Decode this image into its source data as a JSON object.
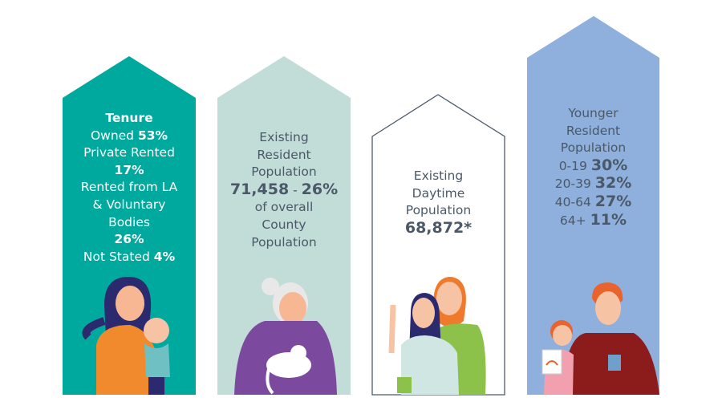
{
  "colors": {
    "house1": "#00a99d",
    "house2": "#c2dcd8",
    "house3_outline": "#4a5a6a",
    "house4": "#8fb0dc",
    "text": "#4a5868"
  },
  "tenure": {
    "title": "Tenure",
    "owned_label": "Owned",
    "owned_value": "53%",
    "private_label": "Private Rented",
    "private_value": "17%",
    "la_label_1": "Rented from LA",
    "la_label_2": "& Voluntary",
    "la_label_3": "Bodies",
    "la_value": "26%",
    "not_stated_label": "Not Stated",
    "not_stated_value": "4%"
  },
  "resident": {
    "line1": "Existing",
    "line2": "Resident",
    "line3": "Population",
    "value": "71,458",
    "sep": "-",
    "percent": "26%",
    "line4": "of overall",
    "line5": "County",
    "line6": "Population"
  },
  "daytime": {
    "line1": "Existing",
    "line2": "Daytime",
    "line3": "Population",
    "value": "68,872*"
  },
  "younger": {
    "line1": "Younger",
    "line2": "Resident",
    "line3": "Population",
    "ages": [
      {
        "range": "0-19",
        "value": "30%"
      },
      {
        "range": "20-39",
        "value": "32%"
      },
      {
        "range": "40-64",
        "value": "27%"
      },
      {
        "range": "64+",
        "value": "11%"
      }
    ]
  }
}
